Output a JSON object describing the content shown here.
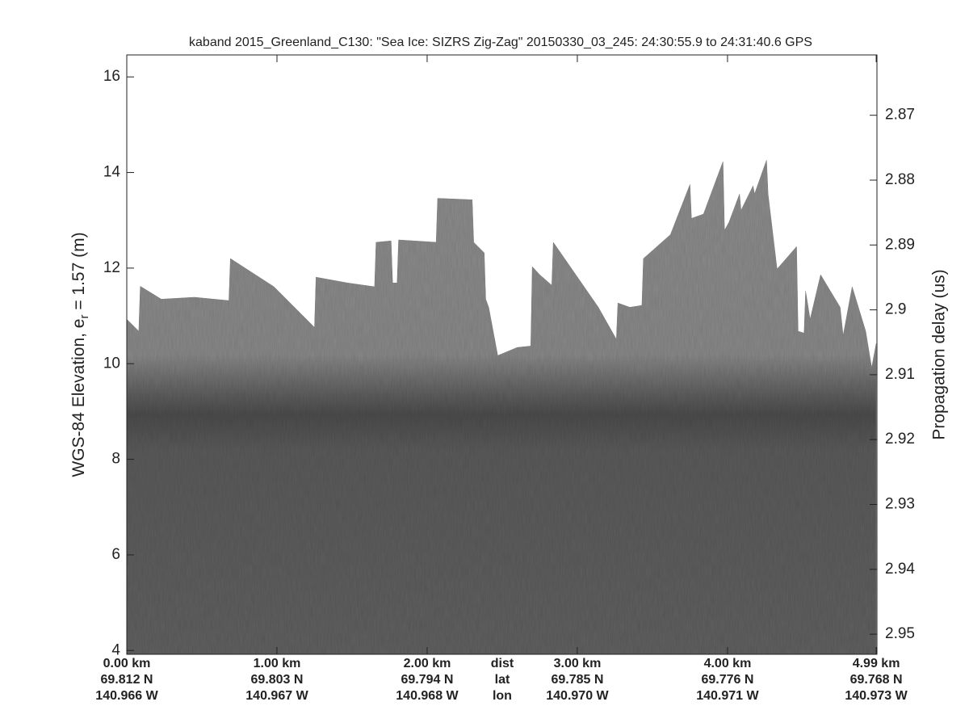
{
  "chart_data": {
    "type": "echogram",
    "title": "kaband 2015_Greenland_C130: \"Sea Ice: SIZRS Zig-Zag\"  20150330_03_245: 24:30:55.9 to 24:31:40.6 GPS",
    "ylabel": "WGS-84 Elevation, e",
    "ylabel_sub": "r",
    "ylabel_tail": " = 1.57 (m)",
    "y2label": "Propagation delay (us)",
    "xlim": [
      0,
      4.995
    ],
    "ylim": [
      3.92,
      16.46
    ],
    "y2lim": [
      2.9531,
      2.8607
    ],
    "yticks": [
      4,
      6,
      8,
      10,
      12,
      14,
      16
    ],
    "y2ticks": [
      2.87,
      2.88,
      2.89,
      2.9,
      2.91,
      2.92,
      2.93,
      2.94,
      2.95
    ],
    "xticks": [
      {
        "value": 0,
        "label": "0.00 km",
        "lat": "69.812 N",
        "lon": "140.966 W"
      },
      {
        "value": 1,
        "label": "1.00 km",
        "lat": "69.803 N",
        "lon": "140.967 W"
      },
      {
        "value": 2,
        "label": "2.00 km",
        "lat": "69.794 N",
        "lon": "140.968 W"
      },
      {
        "value": 3,
        "label": "3.00 km",
        "lat": "69.785 N",
        "lon": "140.970 W"
      },
      {
        "value": 4,
        "label": "4.00 km",
        "lat": "69.776 N",
        "lon": "140.971 W"
      },
      {
        "value": 4.99,
        "label": "4.99 km",
        "lat": "69.768 N",
        "lon": "140.973 W"
      }
    ],
    "x_row_labels": [
      "dist",
      "lat",
      "lon"
    ],
    "x": [
      0,
      0.08,
      0.09,
      0.23,
      0.45,
      0.68,
      0.69,
      0.98,
      1.25,
      1.26,
      1.47,
      1.65,
      1.66,
      1.76,
      1.77,
      1.8,
      1.81,
      2.06,
      2.07,
      2.3,
      2.31,
      2.38,
      2.39,
      2.41,
      2.47,
      2.6,
      2.69,
      2.7,
      2.75,
      2.83,
      2.84,
      3.14,
      3.26,
      3.27,
      3.35,
      3.43,
      3.44,
      3.62,
      3.75,
      3.76,
      3.84,
      3.97,
      3.98,
      4.01,
      4.08,
      4.09,
      4.17,
      4.18,
      4.26,
      4.27,
      4.33,
      4.46,
      4.47,
      4.51,
      4.52,
      4.55,
      4.62,
      4.75,
      4.77,
      4.83,
      4.92,
      4.96,
      4.99
    ],
    "series": [
      {
        "color": "#808080",
        "values": [
          10.93,
          10.68,
          11.62,
          11.35,
          11.39,
          11.32,
          12.2,
          11.61,
          10.76,
          11.81,
          11.69,
          11.61,
          12.54,
          12.57,
          11.69,
          11.69,
          12.59,
          12.54,
          13.46,
          13.43,
          12.54,
          12.32,
          11.35,
          11.18,
          10.17,
          10.34,
          10.37,
          12.03,
          11.86,
          11.64,
          12.54,
          11.18,
          10.51,
          11.27,
          11.18,
          11.22,
          12.2,
          12.7,
          13.75,
          13.04,
          13.13,
          14.23,
          12.79,
          12.96,
          13.55,
          13.21,
          13.72,
          13.55,
          14.26,
          13.55,
          11.98,
          12.45,
          10.68,
          10.64,
          11.52,
          10.93,
          11.86,
          11.18,
          10.59,
          11.61,
          10.68,
          9.92,
          10.42
        ]
      }
    ]
  }
}
